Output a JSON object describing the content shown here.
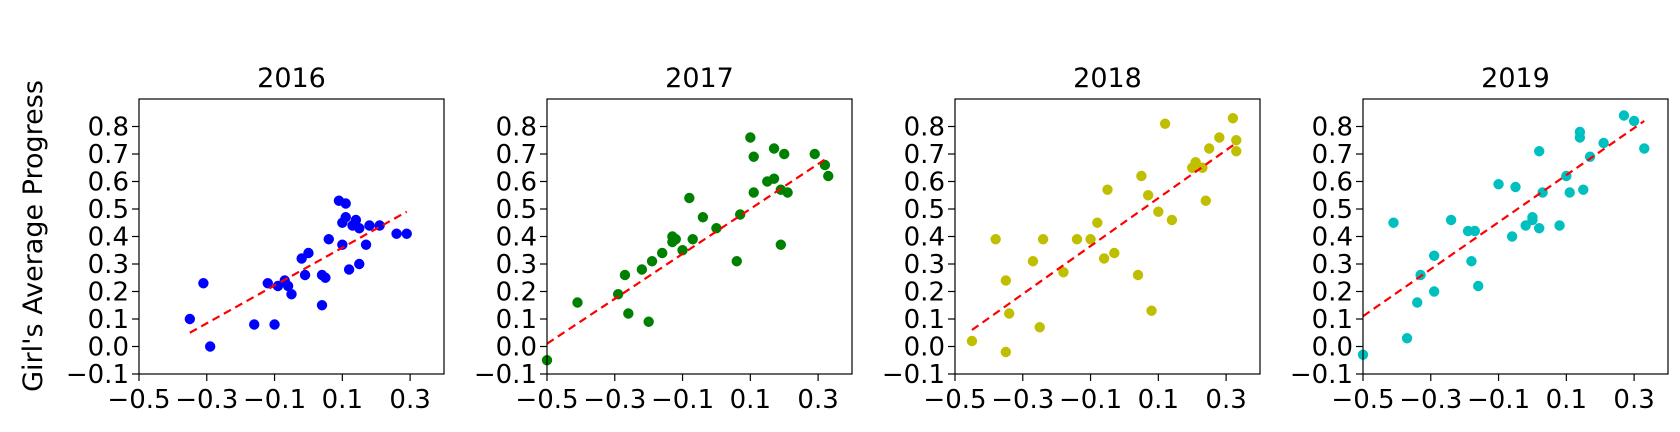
{
  "figure": {
    "ylabel": "Girl's Average Progress"
  },
  "chart_data": [
    {
      "type": "scatter",
      "title": "2016",
      "color": "#0000ff",
      "fit_color": "#ff0000",
      "xlim": [
        -0.5,
        0.4
      ],
      "ylim": [
        -0.1,
        0.9
      ],
      "xticks": [
        "−0.5",
        "−0.3",
        "−0.1",
        "0.1",
        "0.3"
      ],
      "xtick_values": [
        -0.5,
        -0.3,
        -0.1,
        0.1,
        0.3
      ],
      "yticks": [
        "−0.1",
        "0.0",
        "0.1",
        "0.2",
        "0.3",
        "0.4",
        "0.5",
        "0.6",
        "0.7",
        "0.8"
      ],
      "ytick_values": [
        -0.1,
        0.0,
        0.1,
        0.2,
        0.3,
        0.4,
        0.5,
        0.6,
        0.7,
        0.8
      ],
      "points": [
        [
          -0.35,
          0.1
        ],
        [
          -0.31,
          0.23
        ],
        [
          -0.29,
          0.0
        ],
        [
          -0.16,
          0.08
        ],
        [
          -0.12,
          0.23
        ],
        [
          -0.1,
          0.08
        ],
        [
          -0.09,
          0.22
        ],
        [
          -0.07,
          0.24
        ],
        [
          -0.06,
          0.22
        ],
        [
          -0.05,
          0.19
        ],
        [
          -0.02,
          0.32
        ],
        [
          -0.01,
          0.26
        ],
        [
          0.0,
          0.34
        ],
        [
          0.04,
          0.15
        ],
        [
          0.04,
          0.26
        ],
        [
          0.05,
          0.25
        ],
        [
          0.06,
          0.39
        ],
        [
          0.09,
          0.53
        ],
        [
          0.1,
          0.37
        ],
        [
          0.1,
          0.45
        ],
        [
          0.11,
          0.52
        ],
        [
          0.11,
          0.47
        ],
        [
          0.12,
          0.28
        ],
        [
          0.13,
          0.44
        ],
        [
          0.14,
          0.46
        ],
        [
          0.15,
          0.43
        ],
        [
          0.15,
          0.3
        ],
        [
          0.17,
          0.37
        ],
        [
          0.18,
          0.44
        ],
        [
          0.21,
          0.44
        ],
        [
          0.26,
          0.41
        ],
        [
          0.29,
          0.41
        ]
      ],
      "fit": [
        [
          -0.35,
          0.05
        ],
        [
          0.29,
          0.49
        ]
      ]
    },
    {
      "type": "scatter",
      "title": "2017",
      "color": "#008000",
      "fit_color": "#ff0000",
      "xlim": [
        -0.5,
        0.4
      ],
      "ylim": [
        -0.1,
        0.9
      ],
      "xticks": [
        "−0.5",
        "−0.3",
        "−0.1",
        "0.1",
        "0.3"
      ],
      "xtick_values": [
        -0.5,
        -0.3,
        -0.1,
        0.1,
        0.3
      ],
      "yticks": [
        "−0.1",
        "0.0",
        "0.1",
        "0.2",
        "0.3",
        "0.4",
        "0.5",
        "0.6",
        "0.7",
        "0.8"
      ],
      "ytick_values": [
        -0.1,
        0.0,
        0.1,
        0.2,
        0.3,
        0.4,
        0.5,
        0.6,
        0.7,
        0.8
      ],
      "points": [
        [
          -0.5,
          -0.05
        ],
        [
          -0.41,
          0.16
        ],
        [
          -0.29,
          0.19
        ],
        [
          -0.27,
          0.26
        ],
        [
          -0.26,
          0.12
        ],
        [
          -0.22,
          0.28
        ],
        [
          -0.2,
          0.09
        ],
        [
          -0.19,
          0.31
        ],
        [
          -0.16,
          0.34
        ],
        [
          -0.13,
          0.38
        ],
        [
          -0.13,
          0.4
        ],
        [
          -0.12,
          0.39
        ],
        [
          -0.1,
          0.35
        ],
        [
          -0.08,
          0.54
        ],
        [
          -0.07,
          0.39
        ],
        [
          -0.04,
          0.47
        ],
        [
          0.0,
          0.43
        ],
        [
          0.06,
          0.31
        ],
        [
          0.07,
          0.48
        ],
        [
          0.1,
          0.76
        ],
        [
          0.11,
          0.69
        ],
        [
          0.11,
          0.56
        ],
        [
          0.15,
          0.6
        ],
        [
          0.17,
          0.72
        ],
        [
          0.17,
          0.61
        ],
        [
          0.19,
          0.37
        ],
        [
          0.19,
          0.57
        ],
        [
          0.2,
          0.7
        ],
        [
          0.21,
          0.56
        ],
        [
          0.29,
          0.7
        ],
        [
          0.32,
          0.66
        ],
        [
          0.33,
          0.62
        ]
      ],
      "fit": [
        [
          -0.5,
          0.01
        ],
        [
          0.32,
          0.68
        ]
      ]
    },
    {
      "type": "scatter",
      "title": "2018",
      "color": "#bfbf00",
      "fit_color": "#ff0000",
      "xlim": [
        -0.5,
        0.4
      ],
      "ylim": [
        -0.1,
        0.9
      ],
      "xticks": [
        "−0.5",
        "−0.3",
        "−0.1",
        "0.1",
        "0.3"
      ],
      "xtick_values": [
        -0.5,
        -0.3,
        -0.1,
        0.1,
        0.3
      ],
      "yticks": [
        "−0.1",
        "0.0",
        "0.1",
        "0.2",
        "0.3",
        "0.4",
        "0.5",
        "0.6",
        "0.7",
        "0.8"
      ],
      "ytick_values": [
        -0.1,
        0.0,
        0.1,
        0.2,
        0.3,
        0.4,
        0.5,
        0.6,
        0.7,
        0.8
      ],
      "points": [
        [
          -0.45,
          0.02
        ],
        [
          -0.38,
          0.39
        ],
        [
          -0.35,
          0.24
        ],
        [
          -0.35,
          -0.02
        ],
        [
          -0.34,
          0.12
        ],
        [
          -0.27,
          0.31
        ],
        [
          -0.25,
          0.07
        ],
        [
          -0.24,
          0.39
        ],
        [
          -0.18,
          0.27
        ],
        [
          -0.14,
          0.39
        ],
        [
          -0.1,
          0.39
        ],
        [
          -0.08,
          0.45
        ],
        [
          -0.06,
          0.32
        ],
        [
          -0.05,
          0.57
        ],
        [
          -0.03,
          0.34
        ],
        [
          0.04,
          0.26
        ],
        [
          0.05,
          0.62
        ],
        [
          0.07,
          0.55
        ],
        [
          0.08,
          0.13
        ],
        [
          0.1,
          0.49
        ],
        [
          0.12,
          0.81
        ],
        [
          0.14,
          0.46
        ],
        [
          0.2,
          0.65
        ],
        [
          0.21,
          0.67
        ],
        [
          0.23,
          0.65
        ],
        [
          0.24,
          0.53
        ],
        [
          0.25,
          0.72
        ],
        [
          0.28,
          0.76
        ],
        [
          0.32,
          0.83
        ],
        [
          0.33,
          0.71
        ],
        [
          0.33,
          0.75
        ]
      ],
      "fit": [
        [
          -0.45,
          0.06
        ],
        [
          0.33,
          0.74
        ]
      ]
    },
    {
      "type": "scatter",
      "title": "2019",
      "color": "#00bfbf",
      "fit_color": "#ff0000",
      "xlim": [
        -0.5,
        0.4
      ],
      "ylim": [
        -0.1,
        0.9
      ],
      "xticks": [
        "−0.5",
        "−0.3",
        "−0.1",
        "0.1",
        "0.3"
      ],
      "xtick_values": [
        -0.5,
        -0.3,
        -0.1,
        0.1,
        0.3
      ],
      "yticks": [
        "−0.1",
        "0.0",
        "0.1",
        "0.2",
        "0.3",
        "0.4",
        "0.5",
        "0.6",
        "0.7",
        "0.8"
      ],
      "ytick_values": [
        -0.1,
        0.0,
        0.1,
        0.2,
        0.3,
        0.4,
        0.5,
        0.6,
        0.7,
        0.8
      ],
      "points": [
        [
          -0.5,
          -0.03
        ],
        [
          -0.41,
          0.45
        ],
        [
          -0.37,
          0.03
        ],
        [
          -0.34,
          0.16
        ],
        [
          -0.33,
          0.26
        ],
        [
          -0.29,
          0.2
        ],
        [
          -0.29,
          0.33
        ],
        [
          -0.24,
          0.46
        ],
        [
          -0.19,
          0.42
        ],
        [
          -0.18,
          0.31
        ],
        [
          -0.17,
          0.42
        ],
        [
          -0.16,
          0.22
        ],
        [
          -0.1,
          0.59
        ],
        [
          -0.06,
          0.4
        ],
        [
          -0.05,
          0.58
        ],
        [
          -0.02,
          0.44
        ],
        [
          0.0,
          0.46
        ],
        [
          0.0,
          0.47
        ],
        [
          0.02,
          0.43
        ],
        [
          0.02,
          0.71
        ],
        [
          0.03,
          0.56
        ],
        [
          0.08,
          0.44
        ],
        [
          0.1,
          0.62
        ],
        [
          0.11,
          0.56
        ],
        [
          0.14,
          0.78
        ],
        [
          0.14,
          0.76
        ],
        [
          0.15,
          0.57
        ],
        [
          0.17,
          0.69
        ],
        [
          0.21,
          0.74
        ],
        [
          0.27,
          0.84
        ],
        [
          0.3,
          0.82
        ],
        [
          0.33,
          0.72
        ]
      ],
      "fit": [
        [
          -0.5,
          0.11
        ],
        [
          0.33,
          0.82
        ]
      ]
    }
  ]
}
